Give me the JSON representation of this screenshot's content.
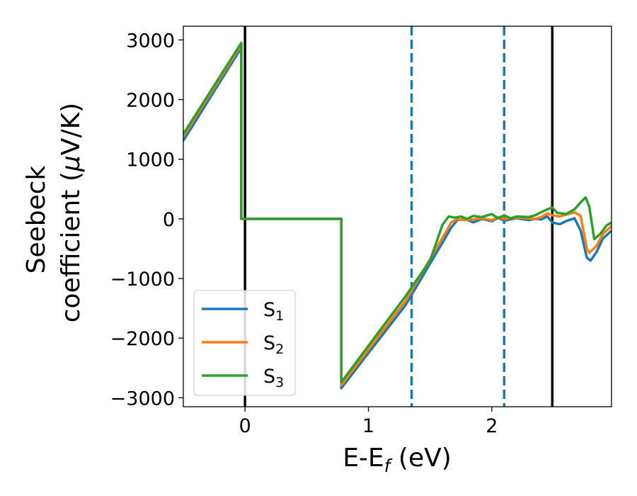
{
  "chart_data": {
    "type": "line",
    "title": "",
    "xlabel_main": "E-E",
    "xlabel_sub": "f",
    "xlabel_tail": " (eV)",
    "ylabel_line1": "Seebeck",
    "ylabel_line2_main": "coefficient  (",
    "ylabel_line2_mu": "μ",
    "ylabel_line2_tail": "V/K)",
    "xlim": [
      -0.5,
      2.97
    ],
    "ylim": [
      -3150,
      3230
    ],
    "xticks": [
      0,
      1,
      2
    ],
    "xtick_labels": [
      "0",
      "1",
      "2"
    ],
    "yticks": [
      -3000,
      -2000,
      -1000,
      0,
      1000,
      2000,
      3000
    ],
    "ytick_labels": [
      "−3000",
      "−2000",
      "−1000",
      "0",
      "1000",
      "2000",
      "3000"
    ],
    "grid": false,
    "legend_position": "lower-left",
    "vertical_lines": [
      {
        "x": 0.0,
        "style": "solid",
        "color": "#000000"
      },
      {
        "x": 1.35,
        "style": "dashed",
        "color": "#1f77b4"
      },
      {
        "x": 2.1,
        "style": "dashed",
        "color": "#1f77b4"
      },
      {
        "x": 2.49,
        "style": "solid",
        "color": "#000000"
      }
    ],
    "series": [
      {
        "name_main": "S",
        "name_sub": "1",
        "color": "#1f77b4",
        "points": [
          [
            -0.5,
            1310
          ],
          [
            -0.03,
            2870
          ],
          [
            -0.03,
            0
          ],
          [
            0.78,
            0
          ],
          [
            0.78,
            -2840
          ],
          [
            1.0,
            -2250
          ],
          [
            1.3,
            -1450
          ],
          [
            1.62,
            -330
          ],
          [
            1.67,
            -150
          ],
          [
            1.72,
            -20
          ],
          [
            1.78,
            0
          ],
          [
            1.85,
            -60
          ],
          [
            1.92,
            0
          ],
          [
            2.0,
            -40
          ],
          [
            2.05,
            20
          ],
          [
            2.1,
            -30
          ],
          [
            2.2,
            10
          ],
          [
            2.3,
            -20
          ],
          [
            2.35,
            0
          ],
          [
            2.4,
            -10
          ],
          [
            2.45,
            40
          ],
          [
            2.49,
            -60
          ],
          [
            2.55,
            -90
          ],
          [
            2.6,
            -40
          ],
          [
            2.67,
            10
          ],
          [
            2.72,
            -200
          ],
          [
            2.77,
            -650
          ],
          [
            2.8,
            -700
          ],
          [
            2.85,
            -550
          ],
          [
            2.9,
            -330
          ],
          [
            2.97,
            -200
          ]
        ]
      },
      {
        "name_main": "S",
        "name_sub": "2",
        "color": "#ff7f0e",
        "points": [
          [
            -0.5,
            1380
          ],
          [
            -0.03,
            2920
          ],
          [
            -0.03,
            0
          ],
          [
            0.78,
            0
          ],
          [
            0.78,
            -2790
          ],
          [
            1.0,
            -2190
          ],
          [
            1.3,
            -1380
          ],
          [
            1.62,
            -250
          ],
          [
            1.67,
            -60
          ],
          [
            1.72,
            -5
          ],
          [
            1.78,
            -20
          ],
          [
            1.85,
            -10
          ],
          [
            1.92,
            10
          ],
          [
            2.0,
            -20
          ],
          [
            2.05,
            30
          ],
          [
            2.1,
            0
          ],
          [
            2.2,
            20
          ],
          [
            2.3,
            10
          ],
          [
            2.35,
            0
          ],
          [
            2.4,
            30
          ],
          [
            2.45,
            90
          ],
          [
            2.49,
            60
          ],
          [
            2.55,
            40
          ],
          [
            2.6,
            70
          ],
          [
            2.67,
            110
          ],
          [
            2.72,
            50
          ],
          [
            2.77,
            -500
          ],
          [
            2.79,
            -570
          ],
          [
            2.85,
            -450
          ],
          [
            2.9,
            -250
          ],
          [
            2.97,
            -120
          ]
        ]
      },
      {
        "name_main": "S",
        "name_sub": "3",
        "color": "#2ca02c",
        "points": [
          [
            -0.5,
            1420
          ],
          [
            -0.03,
            2950
          ],
          [
            -0.03,
            0
          ],
          [
            0.78,
            0
          ],
          [
            0.78,
            -2740
          ],
          [
            1.0,
            -2130
          ],
          [
            1.3,
            -1300
          ],
          [
            1.5,
            -700
          ],
          [
            1.6,
            -100
          ],
          [
            1.65,
            40
          ],
          [
            1.7,
            20
          ],
          [
            1.75,
            40
          ],
          [
            1.8,
            0
          ],
          [
            1.85,
            50
          ],
          [
            1.92,
            30
          ],
          [
            2.0,
            80
          ],
          [
            2.05,
            10
          ],
          [
            2.1,
            60
          ],
          [
            2.15,
            10
          ],
          [
            2.2,
            40
          ],
          [
            2.3,
            30
          ],
          [
            2.35,
            60
          ],
          [
            2.4,
            110
          ],
          [
            2.45,
            160
          ],
          [
            2.49,
            190
          ],
          [
            2.53,
            100
          ],
          [
            2.6,
            80
          ],
          [
            2.67,
            160
          ],
          [
            2.73,
            300
          ],
          [
            2.76,
            360
          ],
          [
            2.79,
            200
          ],
          [
            2.83,
            -340
          ],
          [
            2.88,
            -250
          ],
          [
            2.93,
            -110
          ],
          [
            2.97,
            -60
          ]
        ]
      }
    ]
  }
}
